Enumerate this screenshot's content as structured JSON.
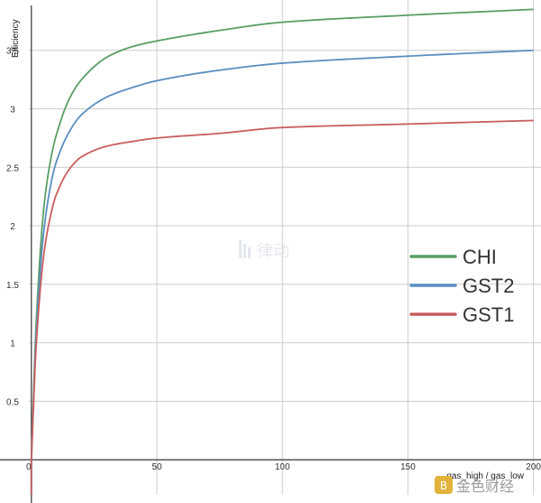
{
  "chart_data": {
    "type": "line",
    "title": "",
    "xlabel": "gas_high / gas_low",
    "ylabel": "Efficiency",
    "xlim": [
      -1,
      203
    ],
    "ylim": [
      -0.3,
      3.93
    ],
    "x_ticks": [
      0,
      50,
      100,
      150,
      200
    ],
    "x_tick_labels": [
      "0",
      "50",
      "100",
      "150",
      "200"
    ],
    "y_ticks": [
      0.5,
      1,
      1.5,
      2,
      2.5,
      3,
      3.5
    ],
    "y_tick_labels": [
      "0.5",
      "1",
      "1.5",
      "2",
      "2.5",
      "3",
      "3.5"
    ],
    "grid": true,
    "legend_position": "right",
    "series": [
      {
        "name": "CHI",
        "color": "#5a9e63",
        "x": [
          0,
          2,
          5,
          8,
          10,
          15,
          20,
          30,
          40,
          50,
          75,
          100,
          150,
          200
        ],
        "y": [
          0,
          1.2,
          2.16,
          2.6,
          2.78,
          3.08,
          3.25,
          3.44,
          3.53,
          3.58,
          3.67,
          3.74,
          3.8,
          3.85
        ]
      },
      {
        "name": "GST2",
        "color": "#5b8ec0",
        "x": [
          0,
          2,
          5,
          8,
          10,
          15,
          20,
          30,
          40,
          50,
          75,
          100,
          150,
          200
        ],
        "y": [
          0,
          1.1,
          1.96,
          2.38,
          2.55,
          2.8,
          2.95,
          3.1,
          3.18,
          3.24,
          3.33,
          3.39,
          3.45,
          3.5
        ]
      },
      {
        "name": "GST1",
        "color": "#c95e5e",
        "x": [
          0,
          2,
          5,
          8,
          10,
          15,
          20,
          30,
          40,
          50,
          75,
          100,
          150,
          200
        ],
        "y": [
          0,
          1.0,
          1.76,
          2.12,
          2.27,
          2.48,
          2.59,
          2.68,
          2.72,
          2.75,
          2.79,
          2.84,
          2.87,
          2.9
        ]
      }
    ]
  },
  "watermarks": {
    "center_text": "律动",
    "corner_text": "金色财经"
  }
}
